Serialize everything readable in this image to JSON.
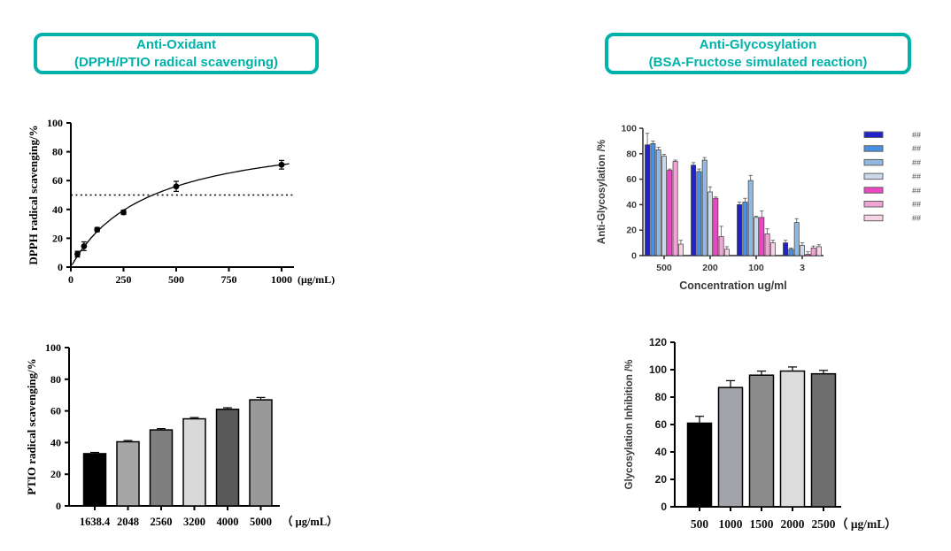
{
  "theme": {
    "accent_teal": "#00b2a9",
    "background": "#ffffff"
  },
  "headers": {
    "left": {
      "line1": "Anti-Oxidant",
      "line2": "(DPPH/PTIO radical scavenging)"
    },
    "right": {
      "line1": "Anti-Glycosylation",
      "line2": "(BSA-Fructose simulated reaction)"
    }
  },
  "chart_data": [
    {
      "id": "dpph",
      "type": "scatter",
      "ylabel": "DPPH radical scavenging/%",
      "xlabel_suffix": "(μg/mL)",
      "xticks": [
        0,
        250,
        500,
        750,
        1000
      ],
      "yticks": [
        0,
        20,
        40,
        60,
        80,
        100
      ],
      "xlim": [
        0,
        1060
      ],
      "ylim": [
        0,
        100
      ],
      "grid": false,
      "reference_line_y": 50,
      "curve": {
        "model": "michaelis-menten",
        "vmax": 97,
        "k": 366
      },
      "point_color": "#000000",
      "points": [
        {
          "x": 31.25,
          "y": 9,
          "err": 2
        },
        {
          "x": 62.5,
          "y": 14.5,
          "err": 3
        },
        {
          "x": 125,
          "y": 26,
          "err": 1.5
        },
        {
          "x": 250,
          "y": 38,
          "err": 1.5
        },
        {
          "x": 500,
          "y": 56,
          "err": 3.5
        },
        {
          "x": 1000,
          "y": 71,
          "err": 3
        }
      ]
    },
    {
      "id": "ptio",
      "type": "bar",
      "ylabel": "PTIO radical scavenging/%",
      "xlabel_suffix": "（ μg/mL）",
      "categories": [
        "1638.4",
        "2048",
        "2560",
        "3200",
        "4000",
        "5000"
      ],
      "values": [
        33,
        40.5,
        48,
        55,
        61,
        67
      ],
      "errors": [
        0.8,
        0.8,
        0.8,
        0.8,
        1,
        1.5
      ],
      "bar_colors": [
        "#000000",
        "#a6a6a6",
        "#7f7f7f",
        "#d9d9d9",
        "#595959",
        "#999999"
      ],
      "yticks": [
        0,
        20,
        40,
        60,
        80,
        100
      ],
      "ylim": [
        0,
        100
      ],
      "grid": false
    },
    {
      "id": "antiglyco",
      "type": "grouped-bar",
      "ylabel": "Anti-Glycosylation /%",
      "xlabel": "Concentration ug/ml",
      "categories": [
        "500",
        "200",
        "100",
        "3"
      ],
      "yticks": [
        0,
        20,
        40,
        60,
        80,
        100
      ],
      "ylim": [
        0,
        100
      ],
      "grid": false,
      "legend_position": "right",
      "series": [
        {
          "name": "##",
          "color": "#2222cc",
          "values": [
            87,
            71,
            40,
            10
          ],
          "errors": [
            9,
            2,
            2,
            2
          ]
        },
        {
          "name": "##",
          "color": "#4a90e2",
          "values": [
            88,
            66,
            42,
            5
          ],
          "errors": [
            2,
            2,
            3,
            1
          ]
        },
        {
          "name": "##",
          "color": "#90b8e0",
          "values": [
            83,
            75,
            59,
            26
          ],
          "errors": [
            2,
            2,
            4,
            3
          ]
        },
        {
          "name": "##",
          "color": "#ccd9ea",
          "values": [
            78,
            50,
            30,
            8
          ],
          "errors": [
            1.5,
            4,
            1,
            2
          ]
        },
        {
          "name": "##",
          "color": "#ec46c2",
          "values": [
            67,
            45,
            30,
            1
          ],
          "errors": [
            1,
            1,
            5,
            2
          ]
        },
        {
          "name": "##",
          "color": "#f2a3d6",
          "values": [
            74,
            15,
            17,
            6
          ],
          "errors": [
            1,
            8,
            4,
            1.5
          ]
        },
        {
          "name": "##",
          "color": "#f6d3e5",
          "values": [
            9,
            5,
            10,
            7
          ],
          "errors": [
            3,
            2,
            2,
            1.5
          ]
        }
      ]
    },
    {
      "id": "glyco",
      "type": "bar",
      "ylabel": "Glycosylation Inhibition /%",
      "xlabel_suffix": "（ μg/mL）",
      "categories": [
        "500",
        "1000",
        "1500",
        "2000",
        "2500"
      ],
      "values": [
        61,
        87,
        96,
        99,
        97
      ],
      "errors": [
        5,
        5,
        3,
        3,
        2.5
      ],
      "bar_colors": [
        "#000000",
        "#a3a3ab",
        "#8c8c8c",
        "#dcdcdc",
        "#6e6e6e"
      ],
      "yticks": [
        0,
        20,
        40,
        60,
        80,
        100,
        120
      ],
      "ylim": [
        0,
        120
      ],
      "grid": false
    }
  ]
}
